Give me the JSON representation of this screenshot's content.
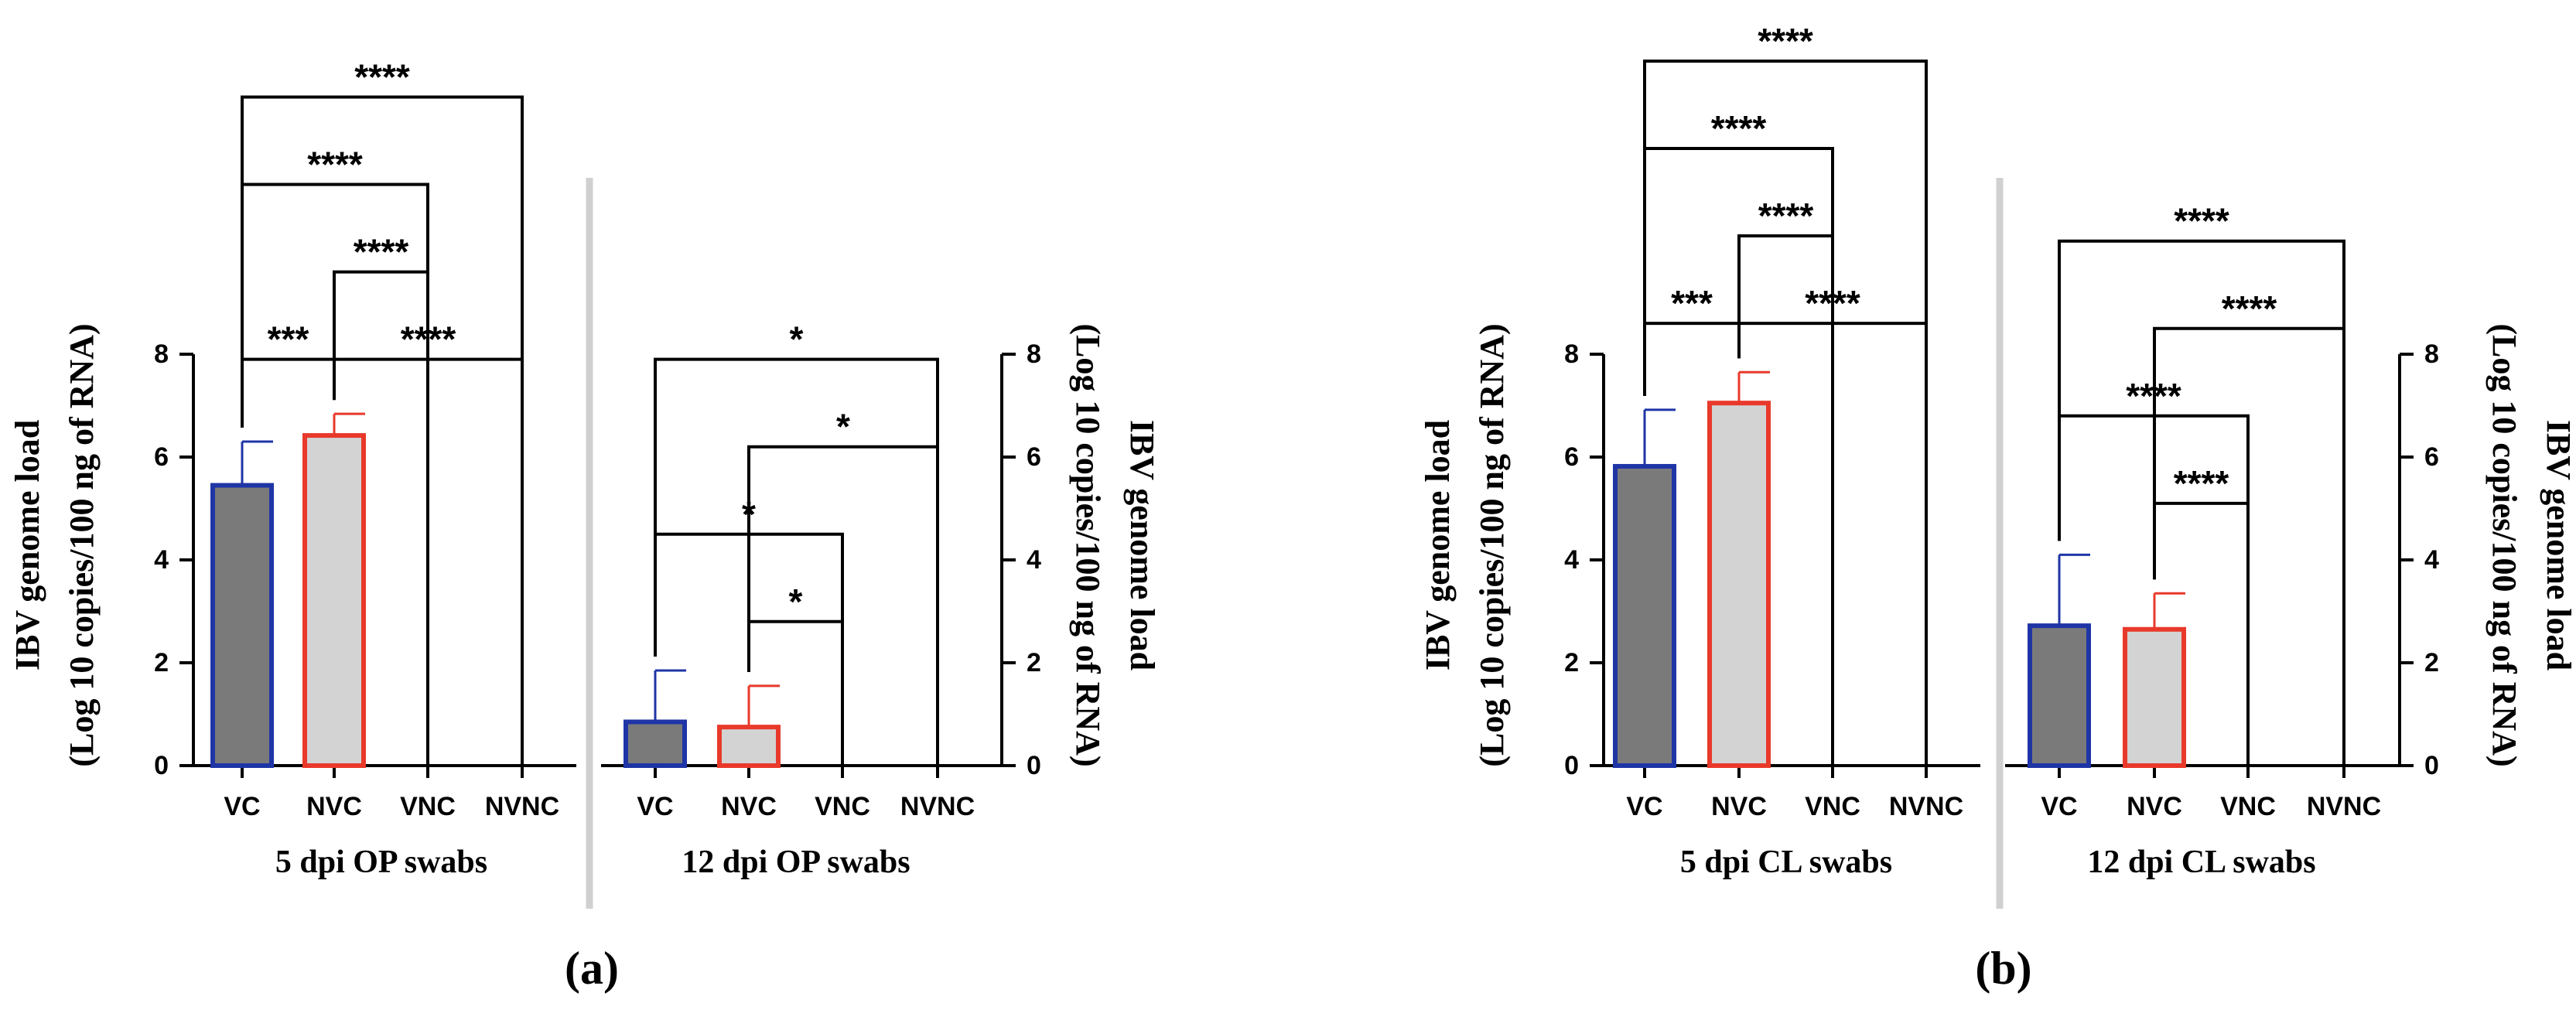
{
  "colors": {
    "vc_fill": "#7a7a7a",
    "vc_edge": "#1f35a6",
    "nvc_fill": "#d3d3d3",
    "nvc_edge": "#e8392b",
    "axis": "#000000",
    "divider": "#d0d0d0"
  },
  "chart_data": [
    {
      "id": "a",
      "type": "bar",
      "panel_label": "(a)",
      "ylabel_left": [
        "IBV genome load",
        "(Log 10 copies/100 ng of RNA)"
      ],
      "ylabel_right": [
        "IBV genome load",
        "(Log 10 copies/100 ng of RNA)"
      ],
      "ylim": [
        0,
        8
      ],
      "yticks": [
        "0",
        "2",
        "4",
        "6",
        "8"
      ],
      "groups": [
        {
          "title": "5 dpi OP swabs",
          "categories": [
            "VC",
            "NVC",
            "VNC",
            "NVNC"
          ],
          "values": [
            5.45,
            6.42,
            0,
            0
          ],
          "errors": [
            0.85,
            0.42,
            0,
            0
          ],
          "significance": [
            {
              "from": 0,
              "to": 1,
              "label": "***",
              "y": 7.9
            },
            {
              "from": 1,
              "to": 3,
              "label": "****",
              "y": 7.9
            },
            {
              "from": 1,
              "to": 2,
              "label": "****",
              "y": 9.6
            },
            {
              "from": 0,
              "to": 2,
              "label": "****",
              "y": 11.3
            },
            {
              "from": 0,
              "to": 3,
              "label": "****",
              "y": 13.0
            }
          ]
        },
        {
          "title": "12 dpi OP swabs",
          "categories": [
            "VC",
            "NVC",
            "VNC",
            "NVNC"
          ],
          "values": [
            0.85,
            0.75,
            0,
            0
          ],
          "errors": [
            1.0,
            0.8,
            0,
            0
          ],
          "significance": [
            {
              "from": 1,
              "to": 2,
              "label": "*",
              "y": 2.8
            },
            {
              "from": 0,
              "to": 2,
              "label": "*",
              "y": 4.5
            },
            {
              "from": 1,
              "to": 3,
              "label": "*",
              "y": 6.2
            },
            {
              "from": 0,
              "to": 3,
              "label": "*",
              "y": 7.9
            }
          ]
        }
      ]
    },
    {
      "id": "b",
      "type": "bar",
      "panel_label": "(b)",
      "ylabel_left": [
        "IBV genome load",
        "(Log 10 copies/100 ng of RNA)"
      ],
      "ylabel_right": [
        "IBV genome load",
        "(Log 10 copies/100 ng of RNA)"
      ],
      "ylim": [
        0,
        8
      ],
      "yticks": [
        "0",
        "2",
        "4",
        "6",
        "8"
      ],
      "groups": [
        {
          "title": "5 dpi CL swabs",
          "categories": [
            "VC",
            "NVC",
            "VNC",
            "NVNC"
          ],
          "values": [
            5.82,
            7.05,
            0,
            0
          ],
          "errors": [
            1.1,
            0.6,
            0,
            0
          ],
          "significance": [
            {
              "from": 0,
              "to": 1,
              "label": "***",
              "y": 8.6
            },
            {
              "from": 1,
              "to": 3,
              "label": "****",
              "y": 8.6
            },
            {
              "from": 1,
              "to": 2,
              "label": "****",
              "y": 10.3
            },
            {
              "from": 0,
              "to": 2,
              "label": "****",
              "y": 12.0
            },
            {
              "from": 0,
              "to": 3,
              "label": "****",
              "y": 13.7
            }
          ]
        },
        {
          "title": "12 dpi CL swabs",
          "categories": [
            "VC",
            "NVC",
            "VNC",
            "NVNC"
          ],
          "values": [
            2.72,
            2.65,
            0,
            0
          ],
          "errors": [
            1.38,
            0.7,
            0,
            0
          ],
          "significance": [
            {
              "from": 1,
              "to": 2,
              "label": "****",
              "y": 5.1
            },
            {
              "from": 0,
              "to": 2,
              "label": "****",
              "y": 6.8
            },
            {
              "from": 1,
              "to": 3,
              "label": "****",
              "y": 8.5
            },
            {
              "from": 0,
              "to": 3,
              "label": "****",
              "y": 10.2
            }
          ]
        }
      ]
    }
  ]
}
